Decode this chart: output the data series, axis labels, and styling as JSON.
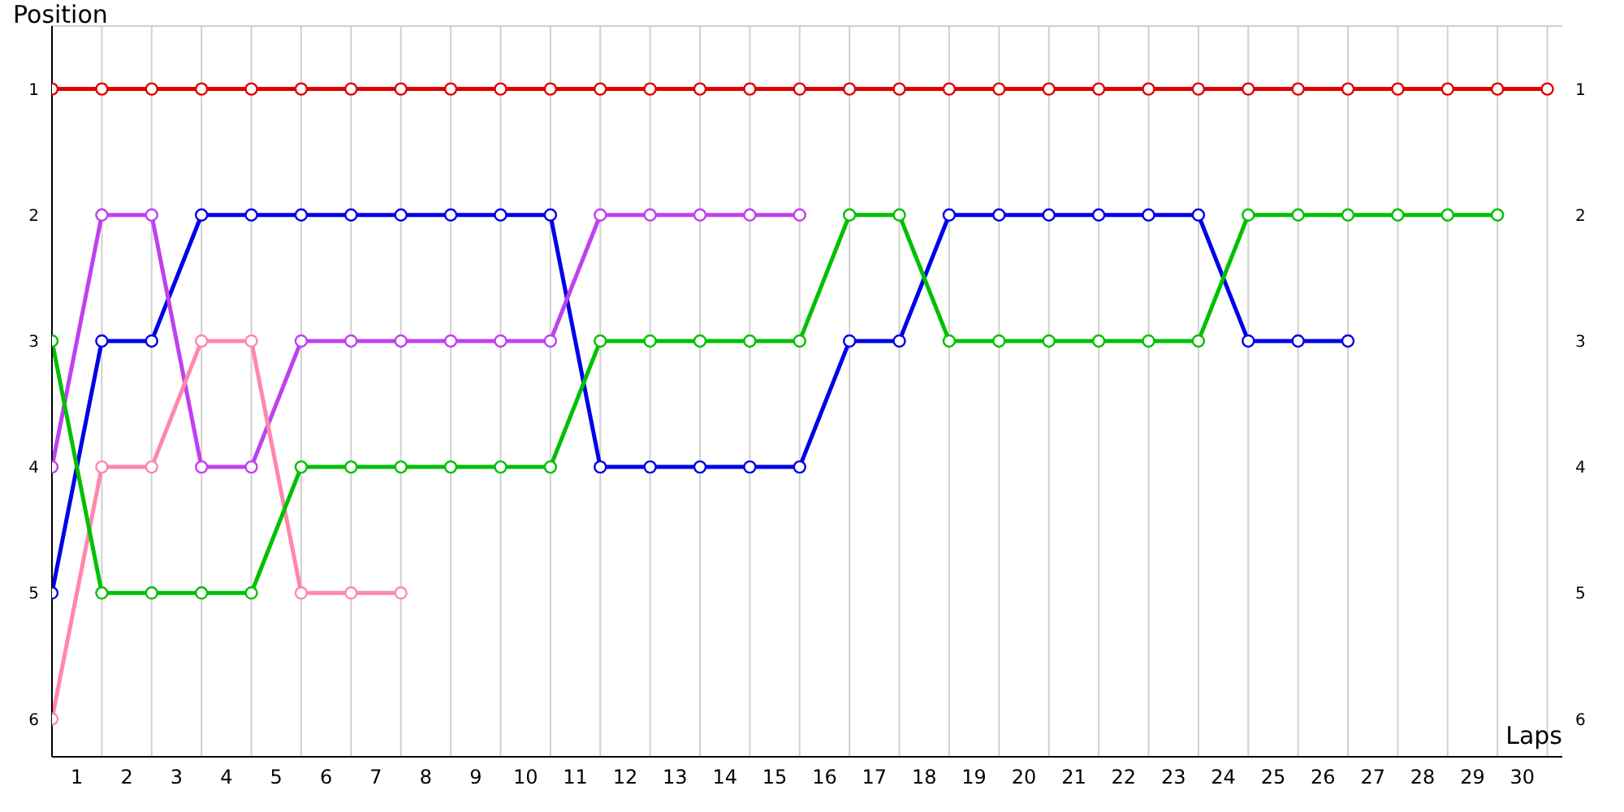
{
  "chart_data": {
    "type": "line",
    "xlabel": "Laps",
    "ylabel": "Position",
    "x": [
      0,
      1,
      2,
      3,
      4,
      5,
      6,
      7,
      8,
      9,
      10,
      11,
      12,
      13,
      14,
      15,
      16,
      17,
      18,
      19,
      20,
      21,
      22,
      23,
      24,
      25,
      26,
      27,
      28,
      29,
      30
    ],
    "series": [
      {
        "color": "#e00000",
        "values": [
          1,
          1,
          1,
          1,
          1,
          1,
          1,
          1,
          1,
          1,
          1,
          1,
          1,
          1,
          1,
          1,
          1,
          1,
          1,
          1,
          1,
          1,
          1,
          1,
          1,
          1,
          1,
          1,
          1,
          1,
          1
        ]
      },
      {
        "color": "#0000e8",
        "values": [
          5,
          3,
          3,
          2,
          2,
          2,
          2,
          2,
          2,
          2,
          2,
          4,
          4,
          4,
          4,
          4,
          3,
          3,
          2,
          2,
          2,
          2,
          2,
          2,
          3,
          3,
          3,
          null,
          null,
          null,
          null
        ]
      },
      {
        "color": "#c040f0",
        "values": [
          4,
          2,
          2,
          4,
          4,
          3,
          3,
          3,
          3,
          3,
          3,
          2,
          2,
          2,
          2,
          2,
          null,
          null,
          null,
          null,
          null,
          null,
          null,
          null,
          null,
          null,
          null,
          null,
          null,
          null,
          null
        ]
      },
      {
        "color": "#ff88aa",
        "values": [
          6,
          4,
          4,
          3,
          3,
          5,
          5,
          5,
          null,
          null,
          null,
          null,
          null,
          null,
          null,
          null,
          null,
          null,
          null,
          null,
          null,
          null,
          null,
          null,
          null,
          null,
          null,
          null,
          null,
          null,
          null
        ]
      },
      {
        "color": "#00c000",
        "values": [
          3,
          5,
          5,
          5,
          5,
          4,
          4,
          4,
          4,
          4,
          4,
          3,
          3,
          3,
          3,
          3,
          2,
          2,
          3,
          3,
          3,
          3,
          3,
          3,
          2,
          2,
          2,
          2,
          2,
          2,
          null
        ]
      }
    ],
    "xlim": [
      0,
      30.3
    ],
    "xticks": [
      {
        "value": 0,
        "label": null
      },
      {
        "value": 0.5,
        "label": "1"
      },
      {
        "value": 1,
        "label": null
      },
      {
        "value": 1.5,
        "label": "2"
      },
      {
        "value": 2,
        "label": null
      },
      {
        "value": 2.5,
        "label": "3"
      },
      {
        "value": 3,
        "label": null
      },
      {
        "value": 3.5,
        "label": "4"
      },
      {
        "value": 4,
        "label": null
      },
      {
        "value": 4.5,
        "label": "5"
      },
      {
        "value": 5,
        "label": null
      },
      {
        "value": 5.5,
        "label": "6"
      },
      {
        "value": 6,
        "label": null
      },
      {
        "value": 6.5,
        "label": "7"
      },
      {
        "value": 7,
        "label": null
      },
      {
        "value": 7.5,
        "label": "8"
      },
      {
        "value": 8,
        "label": null
      },
      {
        "value": 8.5,
        "label": "9"
      },
      {
        "value": 9,
        "label": null
      },
      {
        "value": 9.5,
        "label": "10"
      },
      {
        "value": 10,
        "label": null
      },
      {
        "value": 10.5,
        "label": "11"
      },
      {
        "value": 11,
        "label": null
      },
      {
        "value": 11.5,
        "label": "12"
      },
      {
        "value": 12,
        "label": null
      },
      {
        "value": 12.5,
        "label": "13"
      },
      {
        "value": 13,
        "label": null
      },
      {
        "value": 13.5,
        "label": "14"
      },
      {
        "value": 14,
        "label": null
      },
      {
        "value": 14.5,
        "label": "15"
      },
      {
        "value": 15,
        "label": null
      },
      {
        "value": 15.5,
        "label": "16"
      },
      {
        "value": 16,
        "label": null
      },
      {
        "value": 16.5,
        "label": "17"
      },
      {
        "value": 17,
        "label": null
      },
      {
        "value": 17.5,
        "label": "18"
      },
      {
        "value": 18,
        "label": null
      },
      {
        "value": 18.5,
        "label": "19"
      },
      {
        "value": 19,
        "label": null
      },
      {
        "value": 19.5,
        "label": "20"
      },
      {
        "value": 20,
        "label": null
      },
      {
        "value": 20.5,
        "label": "21"
      },
      {
        "value": 21,
        "label": null
      },
      {
        "value": 21.5,
        "label": "22"
      },
      {
        "value": 22,
        "label": null
      },
      {
        "value": 22.5,
        "label": "23"
      },
      {
        "value": 23,
        "label": null
      },
      {
        "value": 23.5,
        "label": "24"
      },
      {
        "value": 24,
        "label": null
      },
      {
        "value": 24.5,
        "label": "25"
      },
      {
        "value": 25,
        "label": null
      },
      {
        "value": 25.5,
        "label": "26"
      },
      {
        "value": 26,
        "label": null
      },
      {
        "value": 26.5,
        "label": "27"
      },
      {
        "value": 27,
        "label": null
      },
      {
        "value": 27.5,
        "label": "28"
      },
      {
        "value": 28,
        "label": null
      },
      {
        "value": 28.5,
        "label": "29"
      },
      {
        "value": 29,
        "label": null
      },
      {
        "value": 29.5,
        "label": "30"
      },
      {
        "value": 30,
        "label": null
      }
    ],
    "ylim": [
      6.3,
      0.5
    ],
    "yticks": [
      1,
      2,
      3,
      4,
      5,
      6
    ],
    "y2lim": [
      6.3,
      0.5
    ],
    "y2ticks": [
      1,
      2,
      3,
      4,
      5,
      6
    ],
    "grid": true,
    "marker": "circle",
    "line_style": "solid"
  }
}
